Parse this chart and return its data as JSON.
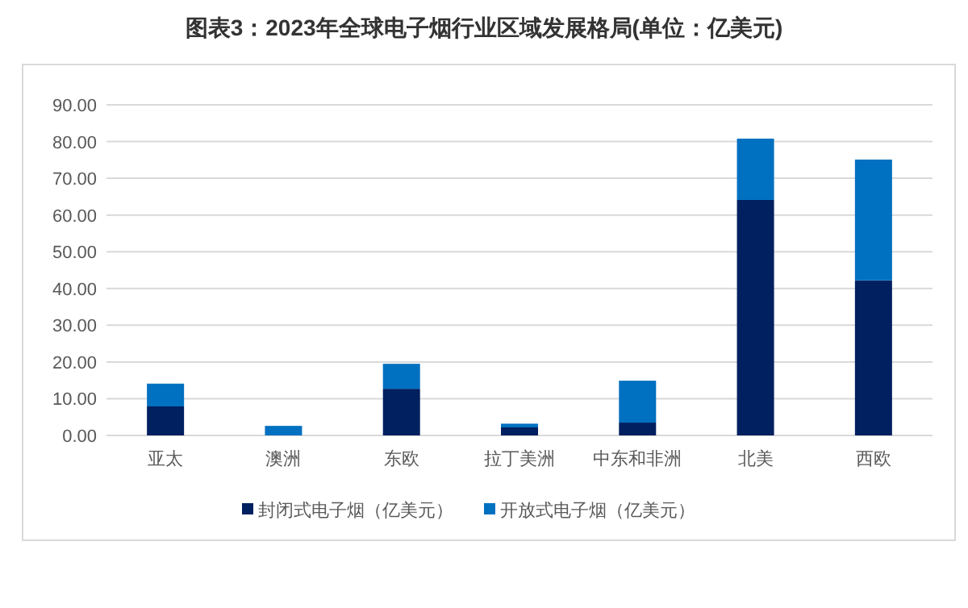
{
  "chart_data": {
    "type": "bar",
    "title": "图表3：2023年全球电子烟行业区域发展格局(单位：亿美元)",
    "categories": [
      "亚太",
      "澳洲",
      "东欧",
      "拉丁美洲",
      "中东和非洲",
      "北美",
      "西欧"
    ],
    "stacked": true,
    "series": [
      {
        "name": "封闭式电子烟（亿美元）",
        "color": "#002060",
        "values": [
          7.9,
          0,
          12.7,
          2.2,
          3.5,
          64.1,
          42.2
        ]
      },
      {
        "name": "开放式电子烟（亿美元）",
        "color": "#0070c0",
        "values": [
          6.2,
          2.6,
          6.8,
          1.0,
          11.4,
          16.7,
          32.9
        ]
      }
    ],
    "ylim": [
      0,
      90
    ],
    "yticks": [
      {
        "value": 0,
        "label": "0.00"
      },
      {
        "value": 10,
        "label": "10.00"
      },
      {
        "value": 20,
        "label": "20.00"
      },
      {
        "value": 30,
        "label": "30.00"
      },
      {
        "value": 40,
        "label": "40.00"
      },
      {
        "value": 50,
        "label": "50.00"
      },
      {
        "value": 60,
        "label": "60.00"
      },
      {
        "value": 70,
        "label": "70.00"
      },
      {
        "value": 80,
        "label": "80.00"
      },
      {
        "value": 90,
        "label": "90.00"
      }
    ],
    "grid": "y",
    "legend": "bottom"
  }
}
